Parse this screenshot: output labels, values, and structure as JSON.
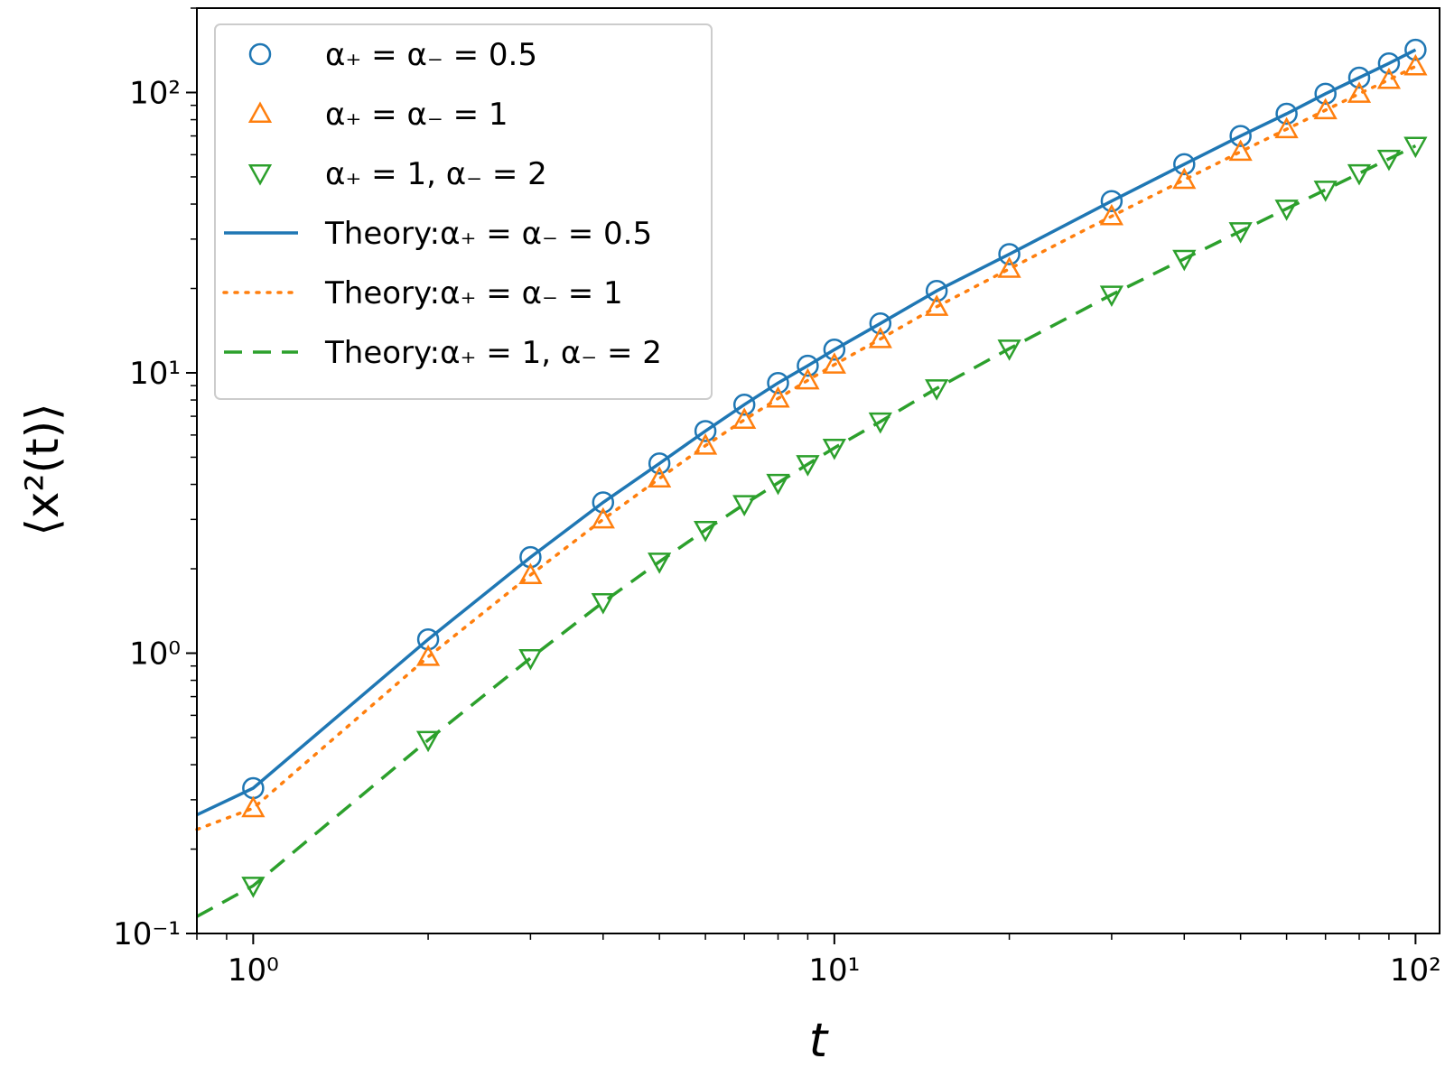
{
  "chart_data": {
    "type": "scatter",
    "xscale": "log",
    "yscale": "log",
    "xlim": [
      0.8,
      110
    ],
    "ylim": [
      0.1,
      200
    ],
    "xlabel": "t",
    "ylabel": "⟨x²(t)⟩",
    "x_ticks": [
      {
        "value": 1,
        "label": "10⁰"
      },
      {
        "value": 10,
        "label": "10¹"
      },
      {
        "value": 100,
        "label": "10²"
      }
    ],
    "y_ticks": [
      {
        "value": 0.1,
        "label": "10⁻¹"
      },
      {
        "value": 1,
        "label": "10⁰"
      },
      {
        "value": 10,
        "label": "10¹"
      },
      {
        "value": 100,
        "label": "10²"
      }
    ],
    "legend_position": "top-left",
    "series": [
      {
        "name": "α₊ = α₋ = 0.5",
        "kind": "marker",
        "marker": "circle",
        "color": "#1f77b4",
        "points": [
          [
            1,
            0.33
          ],
          [
            2,
            1.12
          ],
          [
            3,
            2.2
          ],
          [
            4,
            3.45
          ],
          [
            5,
            4.75
          ],
          [
            6,
            6.2
          ],
          [
            7,
            7.7
          ],
          [
            8,
            9.2
          ],
          [
            9,
            10.6
          ],
          [
            10,
            12.1
          ],
          [
            12,
            15.0
          ],
          [
            15,
            19.6
          ],
          [
            20,
            26.5
          ],
          [
            30,
            41.0
          ],
          [
            40,
            55.5
          ],
          [
            50,
            70
          ],
          [
            60,
            84
          ],
          [
            70,
            99
          ],
          [
            80,
            113
          ],
          [
            90,
            127
          ],
          [
            100,
            142
          ]
        ]
      },
      {
        "name": "α₊ = α₋ = 1",
        "kind": "marker",
        "marker": "triangle-up",
        "color": "#ff7f0e",
        "points": [
          [
            1,
            0.28
          ],
          [
            2,
            0.97
          ],
          [
            3,
            1.9
          ],
          [
            4,
            3.0
          ],
          [
            5,
            4.2
          ],
          [
            6,
            5.5
          ],
          [
            7,
            6.8
          ],
          [
            8,
            8.1
          ],
          [
            9,
            9.4
          ],
          [
            10,
            10.7
          ],
          [
            12,
            13.2
          ],
          [
            15,
            17.2
          ],
          [
            20,
            23.5
          ],
          [
            30,
            36.2
          ],
          [
            40,
            48.8
          ],
          [
            50,
            61.5
          ],
          [
            60,
            74
          ],
          [
            70,
            86.5
          ],
          [
            80,
            99
          ],
          [
            90,
            111
          ],
          [
            100,
            124
          ]
        ]
      },
      {
        "name": "α₊ = 1, α₋ = 2",
        "kind": "marker",
        "marker": "triangle-down",
        "color": "#2ca02c",
        "points": [
          [
            1,
            0.148
          ],
          [
            2,
            0.49
          ],
          [
            3,
            0.96
          ],
          [
            4,
            1.52
          ],
          [
            5,
            2.12
          ],
          [
            6,
            2.75
          ],
          [
            7,
            3.4
          ],
          [
            8,
            4.05
          ],
          [
            9,
            4.72
          ],
          [
            10,
            5.4
          ],
          [
            12,
            6.7
          ],
          [
            15,
            8.8
          ],
          [
            20,
            12.2
          ],
          [
            30,
            19.0
          ],
          [
            40,
            25.5
          ],
          [
            50,
            32
          ],
          [
            60,
            38.5
          ],
          [
            70,
            45
          ],
          [
            80,
            51.5
          ],
          [
            90,
            58
          ],
          [
            100,
            64.5
          ]
        ]
      },
      {
        "name": "Theory:α₊ = α₋ = 0.5",
        "kind": "line",
        "dash": "solid",
        "color": "#1f77b4",
        "points": [
          [
            0.8,
            0.265
          ],
          [
            1,
            0.33
          ],
          [
            2,
            1.12
          ],
          [
            3,
            2.2
          ],
          [
            4,
            3.45
          ],
          [
            5,
            4.75
          ],
          [
            6,
            6.2
          ],
          [
            7,
            7.7
          ],
          [
            8,
            9.2
          ],
          [
            9,
            10.6
          ],
          [
            10,
            12.1
          ],
          [
            12,
            15.0
          ],
          [
            15,
            19.6
          ],
          [
            20,
            26.5
          ],
          [
            30,
            41.0
          ],
          [
            40,
            55.5
          ],
          [
            50,
            70
          ],
          [
            60,
            84
          ],
          [
            70,
            99
          ],
          [
            80,
            113
          ],
          [
            90,
            127
          ],
          [
            100,
            142
          ]
        ]
      },
      {
        "name": "Theory:α₊ = α₋ = 1",
        "kind": "line",
        "dash": "dotted",
        "color": "#ff7f0e",
        "points": [
          [
            0.8,
            0.235
          ],
          [
            1,
            0.28
          ],
          [
            2,
            0.97
          ],
          [
            3,
            1.9
          ],
          [
            4,
            3.0
          ],
          [
            5,
            4.2
          ],
          [
            6,
            5.5
          ],
          [
            7,
            6.8
          ],
          [
            8,
            8.1
          ],
          [
            9,
            9.4
          ],
          [
            10,
            10.7
          ],
          [
            12,
            13.2
          ],
          [
            15,
            17.2
          ],
          [
            20,
            23.5
          ],
          [
            30,
            36.2
          ],
          [
            40,
            48.8
          ],
          [
            50,
            61.5
          ],
          [
            60,
            74
          ],
          [
            70,
            86.5
          ],
          [
            80,
            99
          ],
          [
            90,
            111
          ],
          [
            100,
            124
          ]
        ]
      },
      {
        "name": "Theory:α₊ = 1, α₋ = 2",
        "kind": "line",
        "dash": "dashed",
        "color": "#2ca02c",
        "points": [
          [
            0.8,
            0.115
          ],
          [
            1,
            0.148
          ],
          [
            2,
            0.49
          ],
          [
            3,
            0.96
          ],
          [
            4,
            1.52
          ],
          [
            5,
            2.12
          ],
          [
            6,
            2.75
          ],
          [
            7,
            3.4
          ],
          [
            8,
            4.05
          ],
          [
            9,
            4.72
          ],
          [
            10,
            5.4
          ],
          [
            12,
            6.7
          ],
          [
            15,
            8.8
          ],
          [
            20,
            12.2
          ],
          [
            30,
            19.0
          ],
          [
            40,
            25.5
          ],
          [
            50,
            32
          ],
          [
            60,
            38.5
          ],
          [
            70,
            45
          ],
          [
            80,
            51.5
          ],
          [
            90,
            58
          ],
          [
            100,
            64.5
          ]
        ]
      }
    ]
  }
}
